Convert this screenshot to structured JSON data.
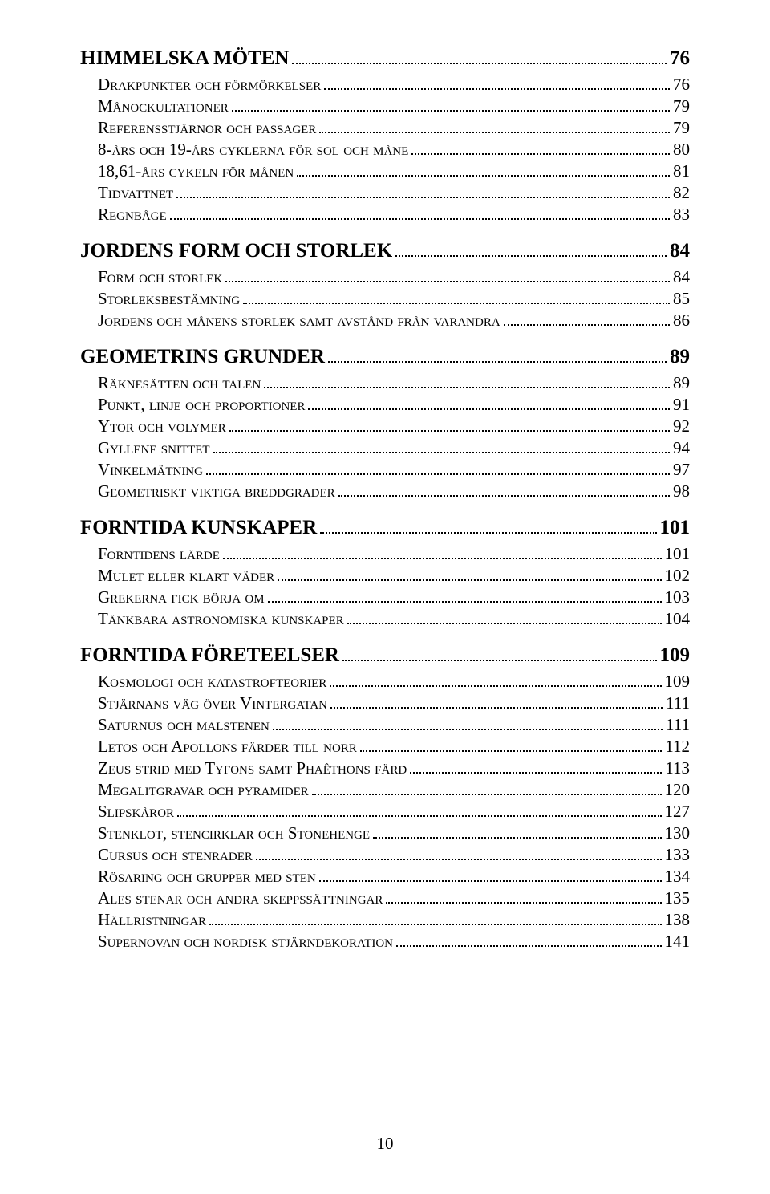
{
  "toc": [
    {
      "level": 1,
      "label": "HIMMELSKA MÖTEN",
      "page": "76"
    },
    {
      "level": 2,
      "label": "Drakpunkter och förmörkelser",
      "page": "76"
    },
    {
      "level": 2,
      "label": "Månockultationer",
      "page": "79"
    },
    {
      "level": 2,
      "label": "Referensstjärnor och passager",
      "page": "79"
    },
    {
      "level": 2,
      "label": "8-års och 19-års cyklerna för sol och måne",
      "page": "80"
    },
    {
      "level": 2,
      "label": "18,61-års cykeln för månen",
      "page": "81"
    },
    {
      "level": 2,
      "label": "Tidvattnet",
      "page": "82"
    },
    {
      "level": 2,
      "label": "Regnbåge",
      "page": "83"
    },
    {
      "level": 1,
      "label": "JORDENS FORM OCH STORLEK",
      "page": "84"
    },
    {
      "level": 2,
      "label": "Form och storlek",
      "page": "84"
    },
    {
      "level": 2,
      "label": "Storleksbestämning",
      "page": "85"
    },
    {
      "level": 2,
      "label": "Jordens och månens storlek samt avstånd från varandra",
      "page": "86"
    },
    {
      "level": 1,
      "label": "GEOMETRINS GRUNDER",
      "page": "89"
    },
    {
      "level": 2,
      "label": "Räknesätten och talen",
      "page": "89"
    },
    {
      "level": 2,
      "label": "Punkt, linje och proportioner",
      "page": "91"
    },
    {
      "level": 2,
      "label": "Ytor och volymer",
      "page": "92"
    },
    {
      "level": 2,
      "label": "Gyllene snittet",
      "page": "94"
    },
    {
      "level": 2,
      "label": "Vinkelmätning",
      "page": "97"
    },
    {
      "level": 2,
      "label": "Geometriskt viktiga breddgrader",
      "page": "98"
    },
    {
      "level": 1,
      "label": "FORNTIDA KUNSKAPER",
      "page": "101"
    },
    {
      "level": 2,
      "label": "Forntidens lärde",
      "page": "101"
    },
    {
      "level": 2,
      "label": "Mulet eller klart väder",
      "page": "102"
    },
    {
      "level": 2,
      "label": "Grekerna fick börja om",
      "page": "103"
    },
    {
      "level": 2,
      "label": "Tänkbara astronomiska kunskaper",
      "page": "104"
    },
    {
      "level": 1,
      "label": "FORNTIDA FÖRETEELSER",
      "page": "109"
    },
    {
      "level": 2,
      "label": "Kosmologi och katastrofteorier",
      "page": "109"
    },
    {
      "level": 2,
      "label": "Stjärnans väg över Vintergatan",
      "page": "111"
    },
    {
      "level": 2,
      "label": "Saturnus och malstenen",
      "page": "111"
    },
    {
      "level": 2,
      "label": "Letos och Apollons färder till norr",
      "page": "112"
    },
    {
      "level": 2,
      "label": "Zeus strid med Tyfons samt Phaêthons färd",
      "page": "113"
    },
    {
      "level": 2,
      "label": "Megalitgravar och pyramider",
      "page": "120"
    },
    {
      "level": 2,
      "label": "Slipskåror",
      "page": "127"
    },
    {
      "level": 2,
      "label": "Stenklot, stencirklar och Stonehenge",
      "page": "130"
    },
    {
      "level": 2,
      "label": "Cursus och stenrader",
      "page": "133"
    },
    {
      "level": 2,
      "label": "Rösaring och grupper med sten",
      "page": "134"
    },
    {
      "level": 2,
      "label": "Ales stenar och andra skeppssättningar",
      "page": "135"
    },
    {
      "level": 2,
      "label": "Hällristningar",
      "page": "138"
    },
    {
      "level": 2,
      "label": "Supernovan och nordisk stjärndekoration",
      "page": "141"
    }
  ],
  "footer_page_number": "10"
}
